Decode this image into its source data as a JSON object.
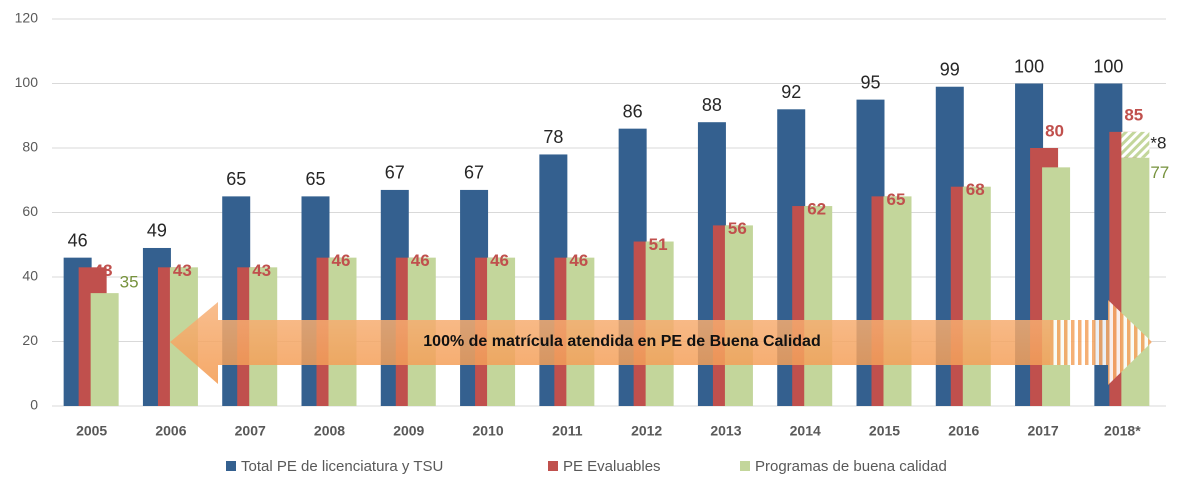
{
  "chart_data": {
    "type": "bar",
    "categories": [
      "2005",
      "2006",
      "2007",
      "2008",
      "2009",
      "2010",
      "2011",
      "2012",
      "2013",
      "2014",
      "2015",
      "2016",
      "2017",
      "2018*"
    ],
    "series": [
      {
        "name": "Total PE de licenciatura y TSU",
        "color": "#34608f",
        "values": [
          46,
          49,
          65,
          65,
          67,
          67,
          78,
          86,
          88,
          92,
          95,
          99,
          100,
          100
        ]
      },
      {
        "name": "PE Evaluables",
        "color": "#c0504d",
        "values": [
          43,
          43,
          43,
          46,
          46,
          46,
          46,
          51,
          56,
          62,
          65,
          68,
          80,
          85
        ]
      },
      {
        "name": "Programas de buena calidad",
        "color": "#c3d69b",
        "values": [
          35,
          43,
          43,
          46,
          46,
          46,
          46,
          51,
          56,
          62,
          65,
          68,
          74,
          77
        ],
        "value_labels": [
          "35",
          null,
          null,
          null,
          null,
          null,
          null,
          null,
          null,
          null,
          null,
          null,
          null,
          "77"
        ]
      }
    ],
    "extra_segment": {
      "category": 13,
      "value": 8,
      "label": "*8"
    },
    "annotation": "100% de matrícula atendida en PE de Buena Calidad",
    "ylim": [
      0,
      120
    ],
    "yticks": [
      0,
      20,
      40,
      60,
      80,
      100,
      120
    ],
    "grid": true,
    "legend": "bottom"
  }
}
